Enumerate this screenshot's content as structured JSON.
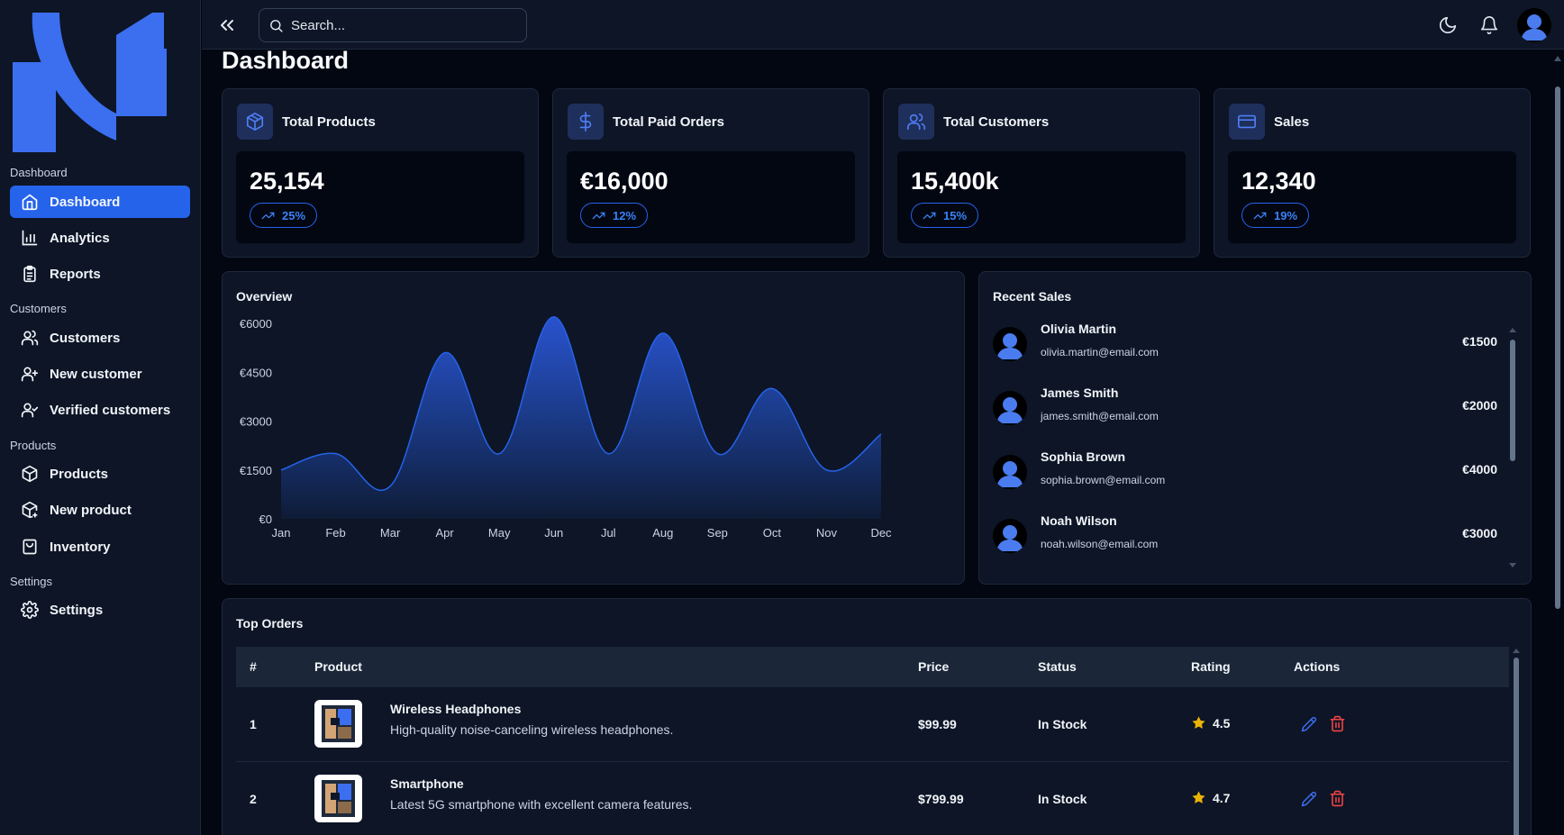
{
  "sidebar": {
    "sections": [
      {
        "label": "Dashboard",
        "items": [
          {
            "label": "Dashboard",
            "icon": "home-icon",
            "active": true
          },
          {
            "label": "Analytics",
            "icon": "bar-chart-icon"
          },
          {
            "label": "Reports",
            "icon": "clipboard-icon"
          }
        ]
      },
      {
        "label": "Customers",
        "items": [
          {
            "label": "Customers",
            "icon": "users-icon"
          },
          {
            "label": "New customer",
            "icon": "user-plus-icon"
          },
          {
            "label": "Verified customers",
            "icon": "user-check-icon"
          }
        ]
      },
      {
        "label": "Products",
        "items": [
          {
            "label": "Products",
            "icon": "package-icon"
          },
          {
            "label": "New product",
            "icon": "package-plus-icon"
          },
          {
            "label": "Inventory",
            "icon": "shopping-bag-icon"
          }
        ]
      },
      {
        "label": "Settings",
        "items": [
          {
            "label": "Settings",
            "icon": "gear-icon"
          }
        ]
      }
    ]
  },
  "topbar": {
    "search_placeholder": "Search..."
  },
  "page": {
    "title": "Dashboard"
  },
  "stats": [
    {
      "title": "Total Products",
      "value": "25,154",
      "change": "25%",
      "icon": "box-icon"
    },
    {
      "title": "Total Paid Orders",
      "value": "€16,000",
      "change": "12%",
      "icon": "dollar-icon"
    },
    {
      "title": "Total Customers",
      "value": "15,400k",
      "change": "15%",
      "icon": "users-icon"
    },
    {
      "title": "Sales",
      "value": "12,340",
      "change": "19%",
      "icon": "credit-card-icon"
    }
  ],
  "overview": {
    "title": "Overview",
    "chart_data": {
      "type": "area",
      "categories": [
        "Jan",
        "Feb",
        "Mar",
        "Apr",
        "May",
        "Jun",
        "Jul",
        "Aug",
        "Sep",
        "Oct",
        "Nov",
        "Dec"
      ],
      "values": [
        1500,
        2000,
        1000,
        5100,
        2000,
        6200,
        2000,
        5700,
        2000,
        4000,
        1500,
        2600
      ],
      "y_ticks": [
        "€0",
        "€1500",
        "€3000",
        "€4500",
        "€6000"
      ],
      "ylim": [
        0,
        6000
      ],
      "color": "#2563eb"
    }
  },
  "recent_sales": {
    "title": "Recent Sales",
    "items": [
      {
        "name": "Olivia Martin",
        "email": "olivia.martin@email.com",
        "amount": "€1500"
      },
      {
        "name": "James Smith",
        "email": "james.smith@email.com",
        "amount": "€2000"
      },
      {
        "name": "Sophia Brown",
        "email": "sophia.brown@email.com",
        "amount": "€4000"
      },
      {
        "name": "Noah Wilson",
        "email": "noah.wilson@email.com",
        "amount": "€3000"
      }
    ]
  },
  "top_orders": {
    "title": "Top Orders",
    "columns": [
      "#",
      "Product",
      "Price",
      "Status",
      "Rating",
      "Actions"
    ],
    "rows": [
      {
        "num": "1",
        "name": "Wireless Headphones",
        "desc": "High-quality noise-canceling wireless headphones.",
        "price": "$99.99",
        "status": "In Stock",
        "rating": "4.5"
      },
      {
        "num": "2",
        "name": "Smartphone",
        "desc": "Latest 5G smartphone with excellent camera features.",
        "price": "$799.99",
        "status": "In Stock",
        "rating": "4.7"
      }
    ]
  },
  "colors": {
    "accent": "#2563eb",
    "card_bg": "#0d1526",
    "page_bg": "#030712",
    "star": "#eab308",
    "delete": "#ef4444"
  }
}
